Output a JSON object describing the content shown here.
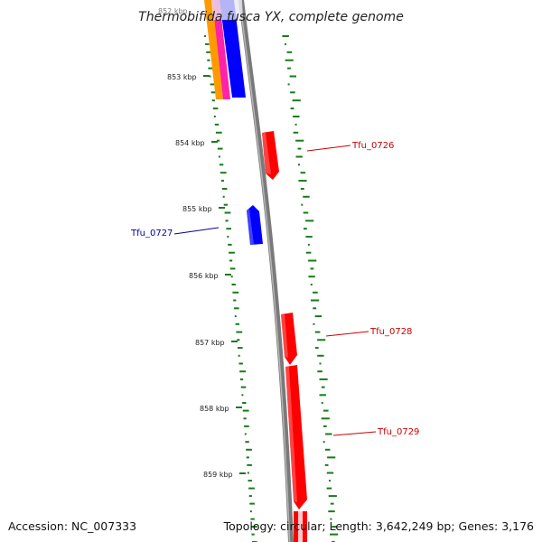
{
  "title": "Thermobifida fusca YX, complete genome",
  "footer": {
    "accession": "Accession: NC_007333",
    "summary": "Topology: circular; Length: 3,642,249 bp; Genes: 3,176"
  },
  "colors": {
    "backbone": "#8a8a8a",
    "gc_dots": "#1a7a1a",
    "gene_forward": "#ff0000",
    "gene_reverse": "#0000ff",
    "orange": "#ff9a00",
    "magenta": "#ff22aa",
    "label_forward": "#cc0000",
    "label_reverse": "#000099"
  },
  "ticks": [
    {
      "label": "852 kbp"
    },
    {
      "label": "853 kbp"
    },
    {
      "label": "854 kbp"
    },
    {
      "label": "855 kbp"
    },
    {
      "label": "856 kbp"
    },
    {
      "label": "857 kbp"
    },
    {
      "label": "858 kbp"
    },
    {
      "label": "859 kbp"
    }
  ],
  "genes": [
    {
      "id": "Tfu_0726",
      "strand": "forward"
    },
    {
      "id": "Tfu_0727",
      "strand": "reverse"
    },
    {
      "id": "Tfu_0728",
      "strand": "forward"
    },
    {
      "id": "Tfu_0729",
      "strand": "forward"
    }
  ]
}
